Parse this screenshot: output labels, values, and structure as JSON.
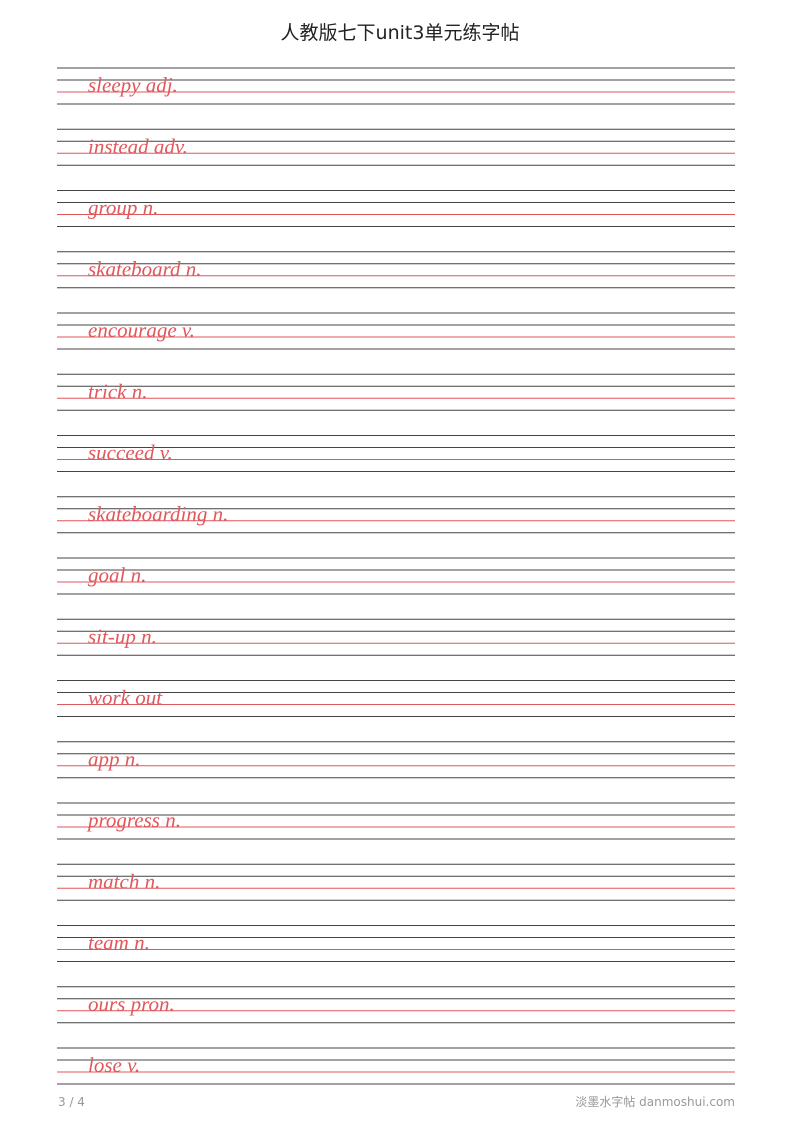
{
  "header": {
    "title": "人教版七下unit3单元练字帖"
  },
  "rows": [
    "sleepy adj.",
    "instead adv.",
    "group n.",
    "skateboard n.",
    "encourage v.",
    "trick n.",
    "succeed v.",
    "skateboarding n.",
    "goal n.",
    "sit-up n.",
    "work out",
    "app n.",
    "progress n.",
    "match n.",
    "team n.",
    "ours pron.",
    "lose v."
  ],
  "footer": {
    "page": "3 / 4",
    "brand": "淡墨水字帖 danmoshui.com"
  }
}
